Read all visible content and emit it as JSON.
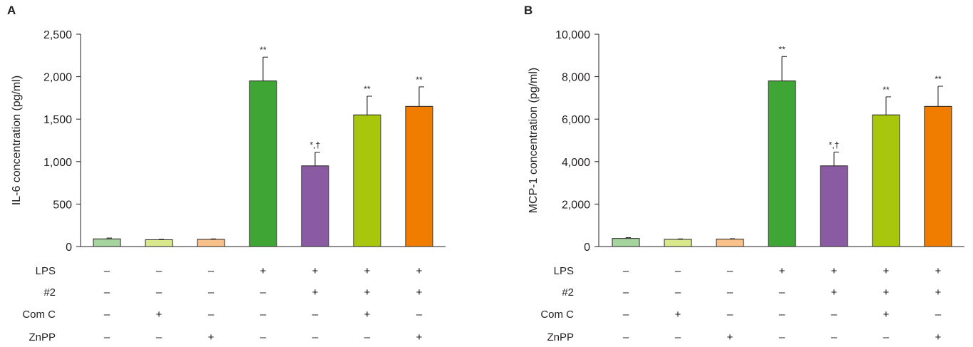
{
  "chart_data": [
    {
      "type": "bar",
      "panel": "A",
      "ylabel": "IL-6 concentration (pg/ml)",
      "ylim": [
        0,
        2500
      ],
      "yticks": [
        0,
        500,
        1000,
        1500,
        2000,
        2500
      ],
      "ytick_labels": [
        "0",
        "500",
        "1,000",
        "1,500",
        "2,000",
        "2,500"
      ],
      "values": [
        90,
        80,
        85,
        1950,
        950,
        1550,
        1650
      ],
      "errors": [
        10,
        5,
        5,
        280,
        160,
        220,
        230
      ],
      "significance": [
        "",
        "",
        "",
        "**",
        "*,†",
        "**",
        "**"
      ],
      "colors": [
        "#a6d49f",
        "#d9e88a",
        "#f9c08a",
        "#3fa535",
        "#8a5aa3",
        "#a8c70c",
        "#f07d00"
      ]
    },
    {
      "type": "bar",
      "panel": "B",
      "ylabel": "MCP-1 concentration (pg/ml)",
      "ylim": [
        0,
        10000
      ],
      "yticks": [
        0,
        2000,
        4000,
        6000,
        8000,
        10000
      ],
      "ytick_labels": [
        "0",
        "2,000",
        "4,000",
        "6,000",
        "8,000",
        "10,000"
      ],
      "values": [
        380,
        340,
        350,
        7800,
        3800,
        6200,
        6600
      ],
      "errors": [
        40,
        20,
        20,
        1150,
        650,
        850,
        950
      ],
      "significance": [
        "",
        "",
        "",
        "**",
        "*,†",
        "**",
        "**"
      ],
      "colors": [
        "#a6d49f",
        "#d9e88a",
        "#f9c08a",
        "#3fa535",
        "#8a5aa3",
        "#a8c70c",
        "#f07d00"
      ]
    }
  ],
  "treatments": [
    {
      "label": "LPS",
      "signs": [
        "–",
        "–",
        "–",
        "+",
        "+",
        "+",
        "+"
      ]
    },
    {
      "label": "#2",
      "signs": [
        "–",
        "–",
        "–",
        "–",
        "+",
        "+",
        "+"
      ]
    },
    {
      "label": "Com C",
      "signs": [
        "–",
        "+",
        "–",
        "–",
        "–",
        "+",
        "–"
      ]
    },
    {
      "label": "ZnPP",
      "signs": [
        "–",
        "–",
        "+",
        "–",
        "–",
        "–",
        "+"
      ]
    }
  ]
}
